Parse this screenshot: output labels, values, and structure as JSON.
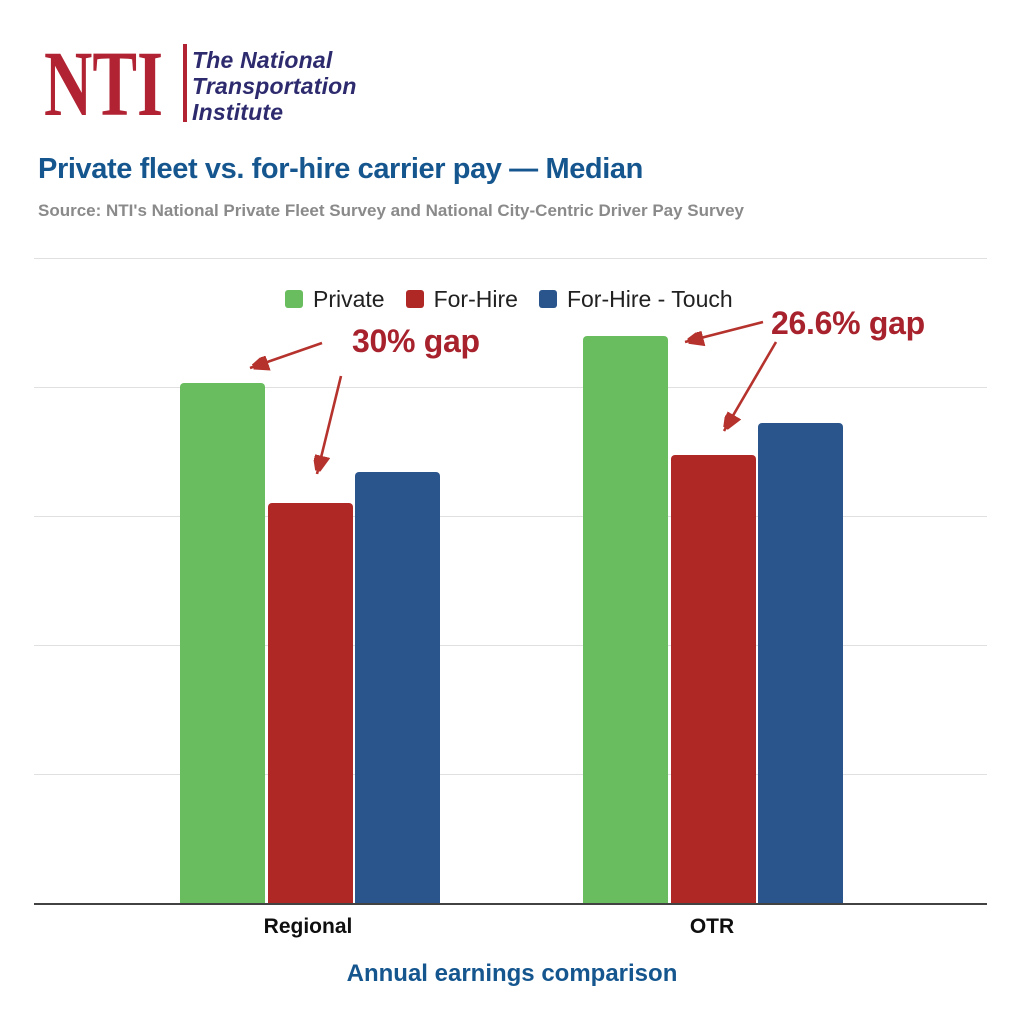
{
  "logo": {
    "acronym": "NTI",
    "acronym_color": "#B12333",
    "divider_color": "#B12333",
    "name_color": "#2D2A6E",
    "name_lines": [
      "The National",
      "Transportation",
      "Institute"
    ]
  },
  "header": {
    "title": "Private fleet vs. for-hire carrier pay — Median",
    "title_color": "#15568F",
    "source": "Source: NTI's National Private Fleet Survey and National City-Centric Driver Pay Survey",
    "source_color": "#8A8A8A"
  },
  "chart_data": {
    "type": "bar",
    "title": "Private fleet vs. for-hire carrier pay — Median",
    "xlabel": "Annual earnings comparison",
    "ylabel": "",
    "categories": [
      "Regional",
      "OTR"
    ],
    "series": [
      {
        "name": "Private",
        "color": "#6ABD5E",
        "values": [
          80.6,
          87.9
        ]
      },
      {
        "name": "For-Hire",
        "color": "#B02826",
        "values": [
          62.0,
          69.4
        ]
      },
      {
        "name": "For-Hire - Touch",
        "color": "#2A548C",
        "values": [
          66.8,
          74.4
        ]
      }
    ],
    "ylim": [
      0,
      100
    ],
    "y_axis_labels_visible": false,
    "value_units": "relative (no y-axis tick labels shown; bars read as % of axis height)",
    "gridlines": 5,
    "grid_color": "#E0E0E0",
    "axis_line_color": "#424242",
    "legend_position": "top-center",
    "annotations": [
      {
        "text": "30% gap",
        "refers_to": "Regional: Private vs For-Hire"
      },
      {
        "text": "26.6% gap",
        "refers_to": "OTR: Private vs For-Hire"
      }
    ],
    "annotation_text_color": "#A7222C",
    "arrow_color": "#B5322D",
    "xlabel_color": "#15568F"
  }
}
